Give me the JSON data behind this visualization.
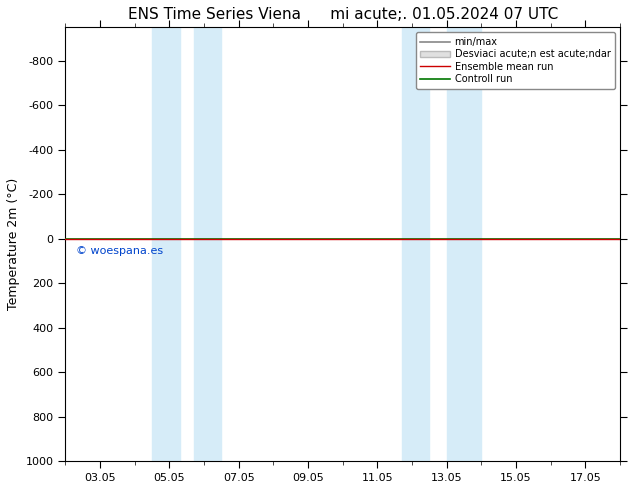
{
  "title": "ENS Time Series Viena      mi acute;. 01.05.2024 07 UTC",
  "ylabel": "Temperature 2m (°C)",
  "xlabel": "",
  "xtick_labels": [
    "03.05",
    "05.05",
    "07.05",
    "09.05",
    "11.05",
    "13.05",
    "15.05",
    "17.05"
  ],
  "xtick_positions": [
    2,
    4,
    6,
    8,
    10,
    12,
    14,
    16
  ],
  "xlim": [
    1,
    17
  ],
  "ylim_bottom": 1000,
  "ylim_top": -950,
  "yticks": [
    -800,
    -600,
    -400,
    -200,
    0,
    200,
    400,
    600,
    800,
    1000
  ],
  "shaded_ranges": [
    [
      3.5,
      4.3
    ],
    [
      4.7,
      5.5
    ],
    [
      10.7,
      11.5
    ],
    [
      12.0,
      13.0
    ]
  ],
  "shaded_color": "#d6ecf8",
  "control_run_y": 0,
  "ensemble_mean_y": 0,
  "background_color": "#ffffff",
  "plot_bg_color": "#ffffff",
  "watermark": "© woespana.es",
  "watermark_color": "#0044cc",
  "legend_items": [
    {
      "label": "min/max",
      "color": "#888888",
      "lw": 1.2
    },
    {
      "label": "Desviaci acute;n est acute;ndar",
      "color": "#cccccc",
      "lw": 8
    },
    {
      "label": "Ensemble mean run",
      "color": "#cc0000",
      "lw": 1.0
    },
    {
      "label": "Controll run",
      "color": "#007700",
      "lw": 1.2
    }
  ],
  "title_fontsize": 11,
  "axis_fontsize": 9,
  "tick_fontsize": 8,
  "figsize": [
    6.34,
    4.9
  ],
  "dpi": 100
}
